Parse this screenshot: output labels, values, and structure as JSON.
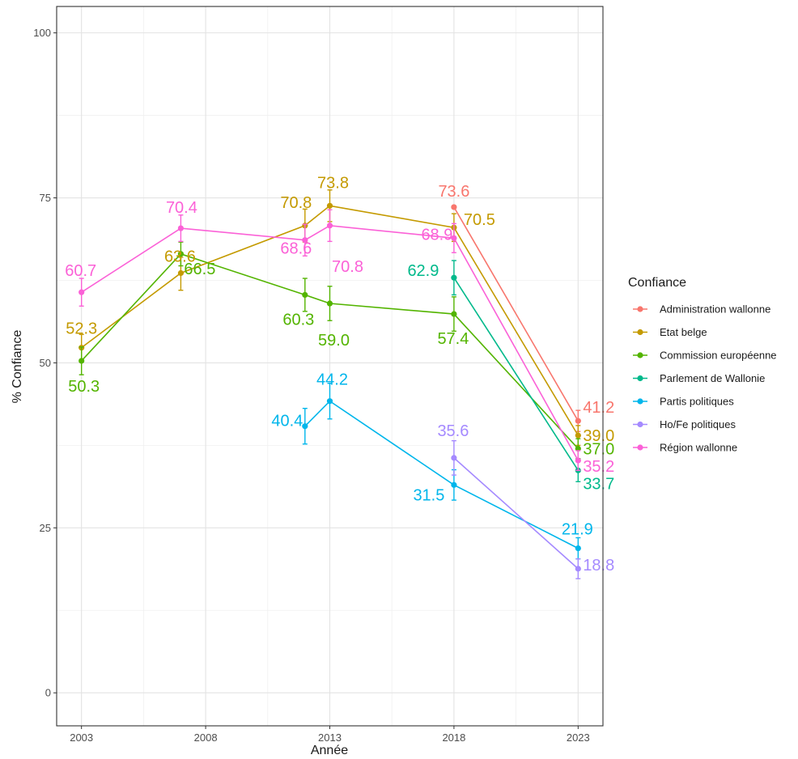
{
  "chart_data": {
    "type": "line",
    "xlabel": "Année",
    "ylabel": "% Confiance",
    "xlim": [
      2002,
      2024
    ],
    "ylim": [
      -5,
      104
    ],
    "x_ticks": [
      2003,
      2008,
      2013,
      2018,
      2023
    ],
    "x_tick_labels": [
      "2003",
      "2008",
      "2013",
      "2018",
      "2023"
    ],
    "y_ticks": [
      0,
      25,
      50,
      75,
      100
    ],
    "y_tick_labels": [
      "0",
      "25",
      "50",
      "75",
      "100"
    ],
    "grid": true,
    "legend": {
      "title": "Confiance",
      "position": "right"
    },
    "series": [
      {
        "name": "Administration wallonne",
        "color": "#F8766D",
        "points": [
          {
            "x": 2018,
            "y": 73.6,
            "lo": 73.6,
            "hi": 73.6,
            "label": "73.6"
          },
          {
            "x": 2023,
            "y": 41.2,
            "lo": 39.6,
            "hi": 42.8,
            "label": "41.2"
          }
        ]
      },
      {
        "name": "Etat belge",
        "color": "#C49A00",
        "points": [
          {
            "x": 2003,
            "y": 52.3,
            "lo": 50.3,
            "hi": 54.3,
            "label": "52.3"
          },
          {
            "x": 2007,
            "y": 63.6,
            "lo": 61.0,
            "hi": 66.0,
            "label": "63.6"
          },
          {
            "x": 2012,
            "y": 70.8,
            "lo": 68.3,
            "hi": 73.3,
            "label": "70.8"
          },
          {
            "x": 2013,
            "y": 73.8,
            "lo": 71.4,
            "hi": 76.2,
            "label": "73.8"
          },
          {
            "x": 2018,
            "y": 70.5,
            "lo": 68.4,
            "hi": 72.6,
            "label": "70.5"
          },
          {
            "x": 2023,
            "y": 39.0,
            "lo": 37.5,
            "hi": 40.5,
            "label": "39.0"
          }
        ]
      },
      {
        "name": "Commission européenne",
        "color": "#53B400",
        "points": [
          {
            "x": 2003,
            "y": 50.3,
            "lo": 48.2,
            "hi": 52.4,
            "label": "50.3"
          },
          {
            "x": 2007,
            "y": 66.5,
            "lo": 64.7,
            "hi": 68.3,
            "label": "66.5"
          },
          {
            "x": 2012,
            "y": 60.3,
            "lo": 57.8,
            "hi": 62.8,
            "label": "60.3"
          },
          {
            "x": 2013,
            "y": 59.0,
            "lo": 56.4,
            "hi": 61.6,
            "label": "59.0"
          },
          {
            "x": 2018,
            "y": 57.4,
            "lo": 54.8,
            "hi": 60.0,
            "label": "57.4"
          },
          {
            "x": 2023,
            "y": 37.0,
            "lo": 35.5,
            "hi": 38.5,
            "label": "37.0"
          }
        ]
      },
      {
        "name": "Parlement de Wallonie",
        "color": "#00B98B",
        "points": [
          {
            "x": 2018,
            "y": 62.9,
            "lo": 60.3,
            "hi": 65.5,
            "label": "62.9"
          },
          {
            "x": 2023,
            "y": 33.7,
            "lo": 32.0,
            "hi": 35.4,
            "label": "33.7"
          }
        ]
      },
      {
        "name": "Partis politiques",
        "color": "#00B6EB",
        "points": [
          {
            "x": 2012,
            "y": 40.4,
            "lo": 37.7,
            "hi": 43.1,
            "label": "40.4"
          },
          {
            "x": 2013,
            "y": 44.2,
            "lo": 41.5,
            "hi": 46.9,
            "label": "44.2"
          },
          {
            "x": 2018,
            "y": 31.5,
            "lo": 29.2,
            "hi": 33.8,
            "label": "31.5"
          },
          {
            "x": 2023,
            "y": 21.9,
            "lo": 20.3,
            "hi": 23.5,
            "label": "21.9"
          }
        ]
      },
      {
        "name": "Ho/Fe politiques",
        "color": "#A58AFF",
        "points": [
          {
            "x": 2018,
            "y": 35.6,
            "lo": 33.0,
            "hi": 38.2,
            "label": "35.6"
          },
          {
            "x": 2023,
            "y": 18.8,
            "lo": 17.3,
            "hi": 20.3,
            "label": "18.8"
          }
        ]
      },
      {
        "name": "Région wallonne",
        "color": "#FB61D7",
        "points": [
          {
            "x": 2003,
            "y": 60.7,
            "lo": 58.6,
            "hi": 62.8,
            "label": "60.7"
          },
          {
            "x": 2007,
            "y": 70.4,
            "lo": 68.4,
            "hi": 72.4,
            "label": "70.4"
          },
          {
            "x": 2012,
            "y": 68.6,
            "lo": 66.2,
            "hi": 71.0,
            "label": "68.6"
          },
          {
            "x": 2013,
            "y": 70.8,
            "lo": 68.4,
            "hi": 73.2,
            "label": "70.8"
          },
          {
            "x": 2018,
            "y": 68.9,
            "lo": 66.7,
            "hi": 71.1,
            "label": "68.9"
          },
          {
            "x": 2023,
            "y": 35.2,
            "lo": 33.7,
            "hi": 36.7,
            "label": "35.2"
          }
        ]
      }
    ]
  }
}
